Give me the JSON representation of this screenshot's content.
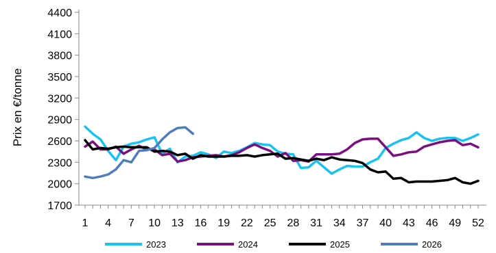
{
  "chart_data": {
    "type": "line",
    "title": "",
    "xlabel": "",
    "ylabel": "Prix en €/tonne",
    "ylim": [
      1700,
      4400
    ],
    "yticks": [
      1700,
      2000,
      2300,
      2600,
      2900,
      3200,
      3500,
      3800,
      4100,
      4400
    ],
    "xlim": [
      1,
      52
    ],
    "xticks": [
      1,
      4,
      7,
      10,
      13,
      16,
      19,
      22,
      25,
      28,
      31,
      34,
      37,
      40,
      43,
      46,
      49,
      52
    ],
    "grid": false,
    "legend_position": "bottom",
    "series": [
      {
        "name": "2023",
        "color": "#19C3F0",
        "x": [
          1,
          2,
          3,
          4,
          5,
          6,
          7,
          8,
          9,
          10,
          11,
          12,
          13,
          14,
          15,
          16,
          17,
          18,
          19,
          20,
          21,
          22,
          23,
          24,
          25,
          26,
          27,
          28,
          29,
          30,
          31,
          32,
          33,
          34,
          35,
          36,
          37,
          38,
          39,
          40,
          41,
          42,
          43,
          44,
          45,
          46,
          47,
          48,
          49,
          50,
          51,
          52
        ],
        "y": [
          2800,
          2700,
          2620,
          2460,
          2330,
          2520,
          2560,
          2580,
          2620,
          2650,
          2420,
          2490,
          2300,
          2380,
          2390,
          2440,
          2410,
          2360,
          2450,
          2430,
          2460,
          2510,
          2570,
          2550,
          2540,
          2450,
          2420,
          2410,
          2220,
          2230,
          2320,
          2230,
          2140,
          2200,
          2250,
          2240,
          2240,
          2300,
          2350,
          2500,
          2560,
          2610,
          2640,
          2720,
          2640,
          2600,
          2630,
          2640,
          2640,
          2600,
          2640,
          2690
        ]
      },
      {
        "name": "2024",
        "color": "#7B0F7F",
        "x": [
          1,
          2,
          3,
          4,
          5,
          6,
          7,
          8,
          9,
          10,
          11,
          12,
          13,
          14,
          15,
          16,
          17,
          18,
          19,
          20,
          21,
          22,
          23,
          24,
          25,
          26,
          27,
          28,
          29,
          30,
          31,
          32,
          33,
          34,
          35,
          36,
          37,
          38,
          39,
          40,
          41,
          42,
          43,
          44,
          45,
          46,
          47,
          48,
          49,
          50,
          51,
          52
        ],
        "y": [
          2520,
          2590,
          2480,
          2480,
          2520,
          2420,
          2480,
          2530,
          2480,
          2480,
          2400,
          2420,
          2310,
          2330,
          2370,
          2380,
          2390,
          2400,
          2380,
          2400,
          2440,
          2500,
          2550,
          2500,
          2460,
          2380,
          2430,
          2320,
          2330,
          2310,
          2410,
          2410,
          2410,
          2420,
          2480,
          2570,
          2620,
          2630,
          2630,
          2510,
          2390,
          2410,
          2440,
          2450,
          2520,
          2550,
          2580,
          2600,
          2610,
          2540,
          2560,
          2510
        ]
      },
      {
        "name": "2025",
        "color": "#000000",
        "x": [
          1,
          2,
          3,
          4,
          5,
          6,
          7,
          8,
          9,
          10,
          11,
          12,
          13,
          14,
          15,
          16,
          17,
          18,
          19,
          20,
          21,
          22,
          23,
          24,
          25,
          26,
          27,
          28,
          29,
          30,
          31,
          32,
          33,
          34,
          35,
          36,
          37,
          38,
          39,
          40,
          41,
          42,
          43,
          44,
          45,
          46,
          47,
          48,
          49,
          50,
          51,
          52
        ],
        "y": [
          2610,
          2480,
          2500,
          2490,
          2510,
          2520,
          2510,
          2510,
          2510,
          2450,
          2460,
          2450,
          2400,
          2420,
          2350,
          2400,
          2380,
          2380,
          2380,
          2390,
          2390,
          2400,
          2380,
          2400,
          2410,
          2420,
          2350,
          2360,
          2340,
          2320,
          2350,
          2330,
          2370,
          2340,
          2330,
          2320,
          2290,
          2200,
          2160,
          2170,
          2070,
          2080,
          2020,
          2030,
          2030,
          2030,
          2040,
          2050,
          2080,
          2020,
          2000,
          2040
        ]
      },
      {
        "name": "2026",
        "color": "#4F7DBB",
        "x": [
          1,
          2,
          3,
          4,
          5,
          6,
          7,
          8,
          9,
          10,
          11,
          12,
          13,
          14,
          15
        ],
        "y": [
          2100,
          2080,
          2100,
          2130,
          2200,
          2330,
          2300,
          2460,
          2470,
          2500,
          2620,
          2720,
          2780,
          2790,
          2700
        ]
      }
    ]
  }
}
